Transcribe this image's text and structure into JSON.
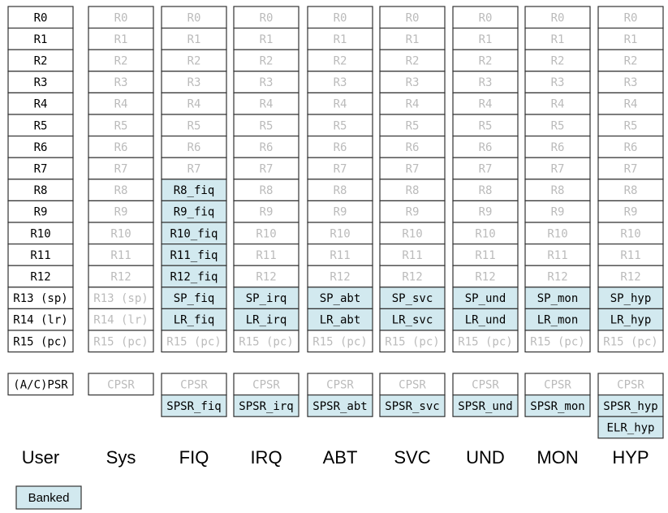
{
  "columns": [
    {
      "name": "User",
      "registers": [
        "R0",
        "R1",
        "R2",
        "R3",
        "R4",
        "R5",
        "R6",
        "R7",
        "R8",
        "R9",
        "R10",
        "R11",
        "R12",
        "R13 (sp)",
        "R14 (lr)",
        "R15 (pc)"
      ],
      "status": [
        "(A/C)PSR"
      ]
    },
    {
      "name": "Sys",
      "registers": [
        "R0",
        "R1",
        "R2",
        "R3",
        "R4",
        "R5",
        "R6",
        "R7",
        "R8",
        "R9",
        "R10",
        "R11",
        "R12",
        "R13 (sp)",
        "R14 (lr)",
        "R15 (pc)"
      ],
      "status": [
        "CPSR"
      ]
    },
    {
      "name": "FIQ",
      "registers": [
        "R0",
        "R1",
        "R2",
        "R3",
        "R4",
        "R5",
        "R6",
        "R7",
        "R8_fiq",
        "R9_fiq",
        "R10_fiq",
        "R11_fiq",
        "R12_fiq",
        "SP_fiq",
        "LR_fiq",
        "R15 (pc)"
      ],
      "status": [
        "CPSR",
        "SPSR_fiq"
      ]
    },
    {
      "name": "IRQ",
      "registers": [
        "R0",
        "R1",
        "R2",
        "R3",
        "R4",
        "R5",
        "R6",
        "R7",
        "R8",
        "R9",
        "R10",
        "R11",
        "R12",
        "SP_irq",
        "LR_irq",
        "R15 (pc)"
      ],
      "status": [
        "CPSR",
        "SPSR_irq"
      ]
    },
    {
      "name": "ABT",
      "registers": [
        "R0",
        "R1",
        "R2",
        "R3",
        "R4",
        "R5",
        "R6",
        "R7",
        "R8",
        "R9",
        "R10",
        "R11",
        "R12",
        "SP_abt",
        "LR_abt",
        "R15 (pc)"
      ],
      "status": [
        "CPSR",
        "SPSR_abt"
      ]
    },
    {
      "name": "SVC",
      "registers": [
        "R0",
        "R1",
        "R2",
        "R3",
        "R4",
        "R5",
        "R6",
        "R7",
        "R8",
        "R9",
        "R10",
        "R11",
        "R12",
        "SP_svc",
        "LR_svc",
        "R15 (pc)"
      ],
      "status": [
        "CPSR",
        "SPSR_svc"
      ]
    },
    {
      "name": "UND",
      "registers": [
        "R0",
        "R1",
        "R2",
        "R3",
        "R4",
        "R5",
        "R6",
        "R7",
        "R8",
        "R9",
        "R10",
        "R11",
        "R12",
        "SP_und",
        "LR_und",
        "R15 (pc)"
      ],
      "status": [
        "CPSR",
        "SPSR_und"
      ]
    },
    {
      "name": "MON",
      "registers": [
        "R0",
        "R1",
        "R2",
        "R3",
        "R4",
        "R5",
        "R6",
        "R7",
        "R8",
        "R9",
        "R10",
        "R11",
        "R12",
        "SP_mon",
        "LR_mon",
        "R15 (pc)"
      ],
      "status": [
        "CPSR",
        "SPSR_mon"
      ]
    },
    {
      "name": "HYP",
      "registers": [
        "R0",
        "R1",
        "R2",
        "R3",
        "R4",
        "R5",
        "R6",
        "R7",
        "R8",
        "R9",
        "R10",
        "R11",
        "R12",
        "SP_hyp",
        "LR_hyp",
        "R15 (pc)"
      ],
      "status": [
        "CPSR",
        "SPSR_hyp",
        "ELR_hyp"
      ]
    }
  ],
  "legend": {
    "label": "Banked"
  }
}
